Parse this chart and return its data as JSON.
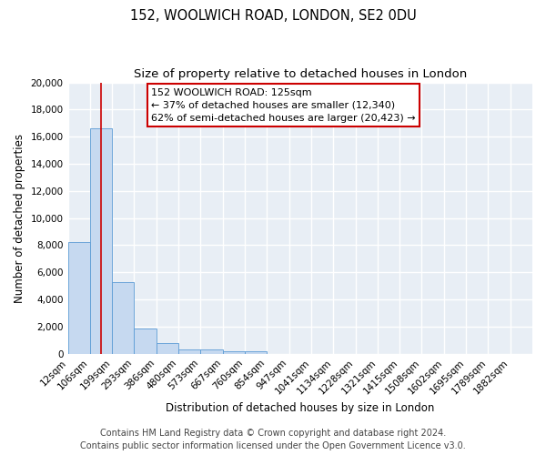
{
  "title": "152, WOOLWICH ROAD, LONDON, SE2 0DU",
  "subtitle": "Size of property relative to detached houses in London",
  "xlabel": "Distribution of detached houses by size in London",
  "ylabel": "Number of detached properties",
  "bar_labels": [
    "12sqm",
    "106sqm",
    "199sqm",
    "293sqm",
    "386sqm",
    "480sqm",
    "573sqm",
    "667sqm",
    "760sqm",
    "854sqm",
    "947sqm",
    "1041sqm",
    "1134sqm",
    "1228sqm",
    "1321sqm",
    "1415sqm",
    "1508sqm",
    "1602sqm",
    "1695sqm",
    "1789sqm",
    "1882sqm"
  ],
  "bar_values": [
    8200,
    16600,
    5300,
    1850,
    750,
    300,
    280,
    200,
    200,
    0,
    0,
    0,
    0,
    0,
    0,
    0,
    0,
    0,
    0,
    0,
    0
  ],
  "bar_color": "#c6d9f0",
  "bar_edge_color": "#5b9bd5",
  "property_line_x": 1.5,
  "property_line_color": "#cc0000",
  "annotation_line1": "152 WOOLWICH ROAD: 125sqm",
  "annotation_line2": "← 37% of detached houses are smaller (12,340)",
  "annotation_line3": "62% of semi-detached houses are larger (20,423) →",
  "ylim": [
    0,
    20000
  ],
  "yticks": [
    0,
    2000,
    4000,
    6000,
    8000,
    10000,
    12000,
    14000,
    16000,
    18000,
    20000
  ],
  "footer_line1": "Contains HM Land Registry data © Crown copyright and database right 2024.",
  "footer_line2": "Contains public sector information licensed under the Open Government Licence v3.0.",
  "bg_color": "#ffffff",
  "plot_bg_color": "#e8eef5",
  "grid_color": "#ffffff",
  "title_fontsize": 10.5,
  "subtitle_fontsize": 9.5,
  "axis_label_fontsize": 8.5,
  "tick_fontsize": 7.5,
  "annotation_fontsize": 8,
  "footer_fontsize": 7
}
